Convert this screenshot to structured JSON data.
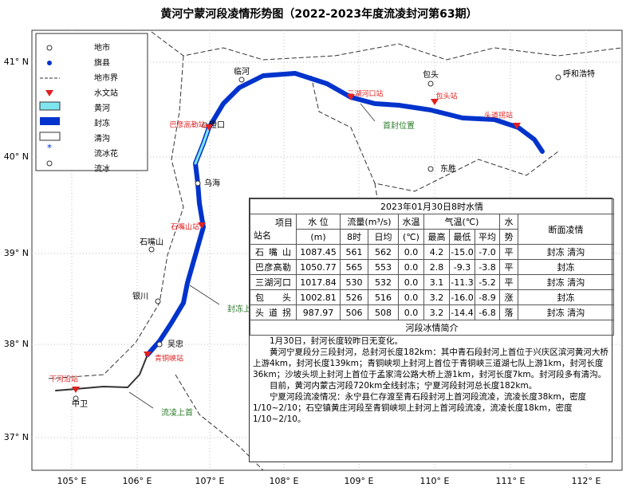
{
  "title": "黄河宁蒙河段凌情形势图（2022-2023年度流凌封河第63期）",
  "legend": [
    "地市",
    "旗县",
    "地市界",
    "水文站",
    "黄河",
    "封冻",
    "清沟",
    "流冰花",
    "流冰"
  ],
  "lat_labels": [
    "41° N",
    "40° N",
    "39° N",
    "38° N",
    "37° N"
  ],
  "lon_labels": [
    "105° E",
    "106° E",
    "107° E",
    "108° E",
    "109° E",
    "110° E",
    "111° E",
    "112° E"
  ],
  "places": [
    "临河",
    "包头",
    "呼和浩特",
    "乌海",
    "石嘴山",
    "银川",
    "吴忠",
    "中卫",
    "东胜",
    "磴口"
  ],
  "stations": [
    "巴彦高勒站",
    "三湖河口站",
    "包头站",
    "头道拐站",
    "石嘴山站",
    "青铜峡站",
    "下河沿站"
  ],
  "annotations": [
    "首封位置",
    "封冻上首",
    "流凌上首"
  ],
  "table": {
    "title": "2023年01月30日8时水情",
    "header": {
      "item": "项目",
      "station": "站名",
      "level": "水 位",
      "level_unit": "(m)",
      "flow": "流量(m³/s)",
      "flow_8h": "8时",
      "flow_avg": "日均",
      "water_temp": "水温",
      "water_temp_unit": "(℃)",
      "air_temp": "气温(℃)",
      "max": "最高",
      "min": "最低",
      "avg": "平均",
      "trend_1": "水",
      "trend_2": "势",
      "ice": "断面凌情"
    },
    "rows": [
      [
        "石嘴山",
        "1087.45",
        "561",
        "562",
        "0.0",
        "4.2",
        "-15.0",
        "-7.0",
        "平",
        "封冻 清沟"
      ],
      [
        "巴彦高勒",
        "1050.77",
        "565",
        "553",
        "0.0",
        "2.8",
        "-9.3",
        "-3.8",
        "平",
        "封冻"
      ],
      [
        "三湖河口",
        "1017.84",
        "530",
        "532",
        "0.0",
        "3.1",
        "-11.3",
        "-5.2",
        "平",
        "封冻 清沟"
      ],
      [
        "包头",
        "1002.81",
        "526",
        "516",
        "0.0",
        "3.2",
        "-16.0",
        "-8.9",
        "涨",
        "封冻"
      ],
      [
        "头道拐",
        "987.97",
        "506",
        "508",
        "0.0",
        "3.2",
        "-14.4",
        "-6.8",
        "落",
        "封冻 清沟"
      ]
    ],
    "section": "河段冰情简介",
    "paragraphs": [
      "1月30日，封河长度较昨日无变化。",
      "黄河宁夏段分三段封河，总封河长度182km：其中青石段封河上首位于兴庆区滨河黄河大桥上游4km，封河长度139km；青铜峡坝上封河上首位于青铜峡三道湖七队上游1km，封河长度36km；沙坡头坝上封河上首位于孟家湾公路大桥上游1km，封河长度7km。封河段多有清沟。",
      "目前，黄河内蒙古河段720km全线封冻；宁夏河段封河总长度182km。",
      "宁夏河段流凌情况：永宁县仁存渡至青石段封河上首河段流凌，流凌长度38km，密度1/10~2/10；石空镇黄庄河段至青铜峡坝上封河上首河段流凌，流凌长度18km，密度1/10~2/10。"
    ]
  }
}
